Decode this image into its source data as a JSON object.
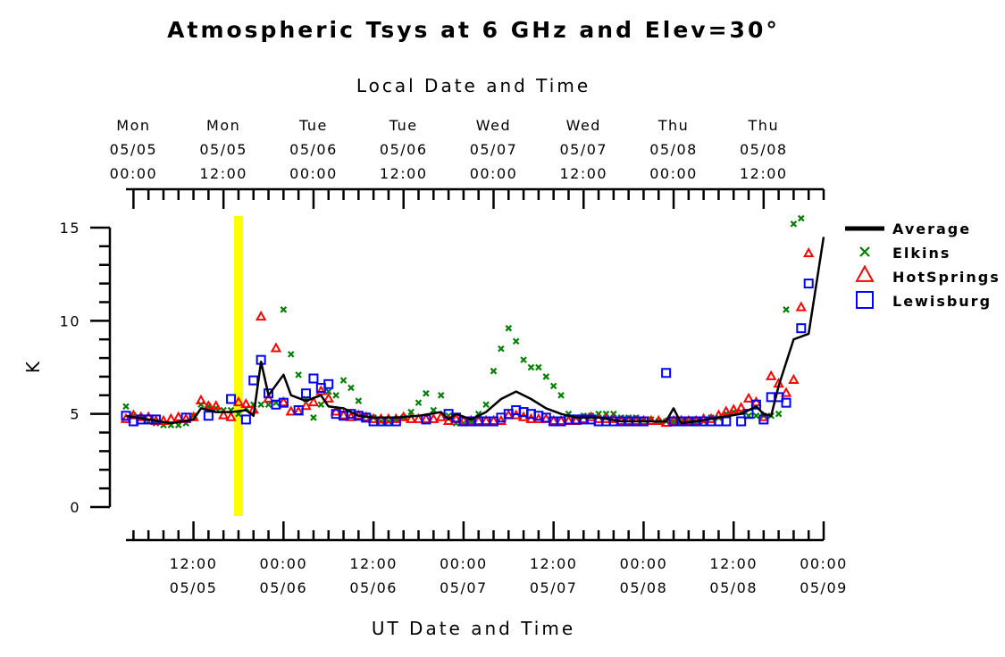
{
  "chart_data": {
    "type": "scatter",
    "title": "Atmospheric Tsys at 6 GHz and Elev=30°",
    "top_axis_label": "Local Date and Time",
    "xlabel": "UT Date and Time",
    "ylabel": "K",
    "ylim": [
      0,
      15
    ],
    "y_ticks": [
      0,
      5,
      10,
      15
    ],
    "xlim": [
      0,
      93
    ],
    "bottom_ticks": [
      {
        "x": 9,
        "time": "12:00",
        "date": "05/05"
      },
      {
        "x": 21,
        "time": "00:00",
        "date": "05/06"
      },
      {
        "x": 33,
        "time": "12:00",
        "date": "05/06"
      },
      {
        "x": 45,
        "time": "00:00",
        "date": "05/07"
      },
      {
        "x": 57,
        "time": "12:00",
        "date": "05/07"
      },
      {
        "x": 69,
        "time": "00:00",
        "date": "05/08"
      },
      {
        "x": 81,
        "time": "12:00",
        "date": "05/08"
      },
      {
        "x": 93,
        "time": "00:00",
        "date": "05/09"
      }
    ],
    "top_ticks": [
      {
        "x": 1,
        "day": "Mon",
        "date": "05/05",
        "time": "00:00"
      },
      {
        "x": 13,
        "day": "Mon",
        "date": "05/05",
        "time": "12:00"
      },
      {
        "x": 25,
        "day": "Tue",
        "date": "05/06",
        "time": "00:00"
      },
      {
        "x": 37,
        "day": "Tue",
        "date": "05/06",
        "time": "12:00"
      },
      {
        "x": 49,
        "day": "Wed",
        "date": "05/07",
        "time": "00:00"
      },
      {
        "x": 61,
        "day": "Wed",
        "date": "05/07",
        "time": "12:00"
      },
      {
        "x": 73,
        "day": "Thu",
        "date": "05/08",
        "time": "00:00"
      },
      {
        "x": 85,
        "day": "Thu",
        "date": "05/08",
        "time": "12:00"
      }
    ],
    "current_time_marker": {
      "x": 15,
      "color": "#ffff00"
    },
    "legend_position": "right",
    "series": [
      {
        "name": "Average",
        "marker": "line",
        "color": "#000000",
        "points": [
          [
            0,
            4.9
          ],
          [
            3,
            4.7
          ],
          [
            6,
            4.5
          ],
          [
            9,
            4.7
          ],
          [
            10,
            5.3
          ],
          [
            12,
            5.1
          ],
          [
            14,
            5.1
          ],
          [
            16,
            5.2
          ],
          [
            17,
            4.9
          ],
          [
            18,
            7.8
          ],
          [
            19,
            6.0
          ],
          [
            21,
            7.1
          ],
          [
            22,
            6.0
          ],
          [
            24,
            5.7
          ],
          [
            26,
            6.0
          ],
          [
            27,
            5.4
          ],
          [
            29,
            5.3
          ],
          [
            31,
            4.9
          ],
          [
            33,
            4.8
          ],
          [
            36,
            4.8
          ],
          [
            39,
            4.9
          ],
          [
            42,
            5.1
          ],
          [
            43,
            4.7
          ],
          [
            44,
            5.0
          ],
          [
            46,
            4.7
          ],
          [
            48,
            5.1
          ],
          [
            50,
            5.8
          ],
          [
            52,
            6.2
          ],
          [
            54,
            5.8
          ],
          [
            56,
            5.3
          ],
          [
            58,
            5.0
          ],
          [
            60,
            4.8
          ],
          [
            63,
            4.8
          ],
          [
            66,
            4.6
          ],
          [
            69,
            4.6
          ],
          [
            72,
            4.6
          ],
          [
            73,
            5.3
          ],
          [
            74,
            4.5
          ],
          [
            76,
            4.6
          ],
          [
            79,
            4.8
          ],
          [
            82,
            5.0
          ],
          [
            84,
            5.4
          ],
          [
            85,
            5.0
          ],
          [
            86,
            4.9
          ],
          [
            87,
            6.5
          ],
          [
            89,
            9.0
          ],
          [
            91,
            9.3
          ],
          [
            93,
            14.5
          ]
        ]
      },
      {
        "name": "Elkins",
        "marker": "x",
        "color": "#008000",
        "points": [
          [
            0,
            5.4
          ],
          [
            1,
            4.9
          ],
          [
            2,
            4.8
          ],
          [
            3,
            4.6
          ],
          [
            4,
            4.5
          ],
          [
            5,
            4.4
          ],
          [
            6,
            4.4
          ],
          [
            7,
            4.4
          ],
          [
            8,
            4.5
          ],
          [
            9,
            4.9
          ],
          [
            10,
            5.5
          ],
          [
            11,
            5.4
          ],
          [
            12,
            5.3
          ],
          [
            13,
            5.2
          ],
          [
            14,
            5.2
          ],
          [
            15,
            5.0
          ],
          [
            16,
            5.3
          ],
          [
            17,
            5.5
          ],
          [
            18,
            5.5
          ],
          [
            19,
            5.5
          ],
          [
            20,
            5.6
          ],
          [
            21,
            10.6
          ],
          [
            22,
            8.2
          ],
          [
            23,
            7.1
          ],
          [
            24,
            5.8
          ],
          [
            25,
            4.8
          ],
          [
            26,
            5.5
          ],
          [
            27,
            6.2
          ],
          [
            28,
            6.0
          ],
          [
            29,
            6.8
          ],
          [
            30,
            6.4
          ],
          [
            31,
            5.7
          ],
          [
            32,
            4.9
          ],
          [
            33,
            4.8
          ],
          [
            34,
            4.6
          ],
          [
            35,
            4.6
          ],
          [
            36,
            4.7
          ],
          [
            37,
            4.8
          ],
          [
            38,
            5.1
          ],
          [
            39,
            5.6
          ],
          [
            40,
            6.1
          ],
          [
            41,
            5.2
          ],
          [
            42,
            6.0
          ],
          [
            43,
            4.9
          ],
          [
            44,
            4.5
          ],
          [
            45,
            4.5
          ],
          [
            46,
            4.6
          ],
          [
            47,
            5.0
          ],
          [
            48,
            5.5
          ],
          [
            49,
            7.3
          ],
          [
            50,
            8.5
          ],
          [
            51,
            9.6
          ],
          [
            52,
            8.9
          ],
          [
            53,
            7.9
          ],
          [
            54,
            7.5
          ],
          [
            55,
            7.5
          ],
          [
            56,
            7.0
          ],
          [
            57,
            6.5
          ],
          [
            58,
            6.0
          ],
          [
            59,
            5.0
          ],
          [
            60,
            4.8
          ],
          [
            61,
            4.9
          ],
          [
            62,
            4.9
          ],
          [
            63,
            5.0
          ],
          [
            64,
            5.0
          ],
          [
            65,
            5.0
          ],
          [
            66,
            4.8
          ],
          [
            67,
            4.8
          ],
          [
            68,
            4.8
          ],
          [
            69,
            4.7
          ],
          [
            70,
            4.7
          ],
          [
            71,
            4.6
          ],
          [
            72,
            4.6
          ],
          [
            73,
            4.6
          ],
          [
            74,
            4.6
          ],
          [
            75,
            4.6
          ],
          [
            76,
            4.6
          ],
          [
            77,
            4.6
          ],
          [
            78,
            4.8
          ],
          [
            79,
            4.8
          ],
          [
            80,
            5.0
          ],
          [
            81,
            5.1
          ],
          [
            82,
            5.1
          ],
          [
            83,
            4.9
          ],
          [
            84,
            4.9
          ],
          [
            85,
            4.9
          ],
          [
            86,
            4.9
          ],
          [
            87,
            5.0
          ],
          [
            88,
            10.6
          ],
          [
            89,
            15.2
          ],
          [
            90,
            15.5
          ]
        ]
      },
      {
        "name": "HotSprings",
        "marker": "triangle",
        "color": "#ff0000",
        "points": [
          [
            0,
            4.7
          ],
          [
            1,
            4.9
          ],
          [
            2,
            4.8
          ],
          [
            3,
            4.8
          ],
          [
            4,
            4.6
          ],
          [
            5,
            4.6
          ],
          [
            6,
            4.7
          ],
          [
            7,
            4.8
          ],
          [
            8,
            4.7
          ],
          [
            9,
            4.8
          ],
          [
            10,
            5.7
          ],
          [
            11,
            5.4
          ],
          [
            12,
            5.4
          ],
          [
            13,
            4.9
          ],
          [
            14,
            4.8
          ],
          [
            15,
            5.6
          ],
          [
            16,
            5.5
          ],
          [
            17,
            5.2
          ],
          [
            18,
            10.2
          ],
          [
            19,
            5.8
          ],
          [
            20,
            8.5
          ],
          [
            21,
            5.6
          ],
          [
            22,
            5.1
          ],
          [
            23,
            5.1
          ],
          [
            24,
            5.4
          ],
          [
            25,
            5.6
          ],
          [
            26,
            6.2
          ],
          [
            27,
            5.8
          ],
          [
            28,
            5.1
          ],
          [
            29,
            4.9
          ],
          [
            30,
            4.8
          ],
          [
            31,
            4.9
          ],
          [
            32,
            4.8
          ],
          [
            33,
            4.7
          ],
          [
            34,
            4.7
          ],
          [
            35,
            4.7
          ],
          [
            36,
            4.7
          ],
          [
            37,
            4.8
          ],
          [
            38,
            4.7
          ],
          [
            39,
            4.7
          ],
          [
            40,
            4.7
          ],
          [
            41,
            4.7
          ],
          [
            42,
            4.8
          ],
          [
            43,
            4.6
          ],
          [
            44,
            4.7
          ],
          [
            45,
            4.6
          ],
          [
            46,
            4.6
          ],
          [
            47,
            4.6
          ],
          [
            48,
            4.6
          ],
          [
            49,
            4.6
          ],
          [
            50,
            4.6
          ],
          [
            51,
            4.9
          ],
          [
            52,
            4.9
          ],
          [
            53,
            4.8
          ],
          [
            54,
            4.7
          ],
          [
            55,
            4.7
          ],
          [
            56,
            4.7
          ],
          [
            57,
            4.6
          ],
          [
            58,
            4.6
          ],
          [
            59,
            4.6
          ],
          [
            60,
            4.6
          ],
          [
            61,
            4.7
          ],
          [
            62,
            4.8
          ],
          [
            63,
            4.7
          ],
          [
            64,
            4.7
          ],
          [
            65,
            4.7
          ],
          [
            66,
            4.6
          ],
          [
            67,
            4.6
          ],
          [
            68,
            4.6
          ],
          [
            69,
            4.6
          ],
          [
            70,
            4.6
          ],
          [
            71,
            4.6
          ],
          [
            72,
            4.5
          ],
          [
            73,
            4.6
          ],
          [
            74,
            4.6
          ],
          [
            75,
            4.6
          ],
          [
            76,
            4.6
          ],
          [
            77,
            4.7
          ],
          [
            78,
            4.7
          ],
          [
            79,
            4.9
          ],
          [
            80,
            5.1
          ],
          [
            81,
            5.2
          ],
          [
            82,
            5.3
          ],
          [
            83,
            5.8
          ],
          [
            84,
            5.6
          ],
          [
            85,
            4.8
          ],
          [
            86,
            7.0
          ],
          [
            87,
            6.6
          ],
          [
            88,
            6.1
          ],
          [
            89,
            6.8
          ],
          [
            90,
            10.7
          ],
          [
            91,
            13.6
          ]
        ]
      },
      {
        "name": "Lewisburg",
        "marker": "square",
        "color": "#0000ff",
        "points": [
          [
            0,
            4.9
          ],
          [
            1,
            4.6
          ],
          [
            2,
            4.7
          ],
          [
            3,
            4.7
          ],
          [
            4,
            4.7
          ],
          [
            8,
            4.8
          ],
          [
            11,
            4.9
          ],
          [
            14,
            5.8
          ],
          [
            16,
            4.7
          ],
          [
            17,
            6.8
          ],
          [
            18,
            7.9
          ],
          [
            19,
            6.1
          ],
          [
            20,
            5.5
          ],
          [
            21,
            5.6
          ],
          [
            23,
            5.2
          ],
          [
            24,
            6.1
          ],
          [
            25,
            6.9
          ],
          [
            26,
            6.4
          ],
          [
            27,
            6.6
          ],
          [
            28,
            5.0
          ],
          [
            29,
            4.9
          ],
          [
            30,
            5.0
          ],
          [
            31,
            4.9
          ],
          [
            32,
            4.8
          ],
          [
            33,
            4.6
          ],
          [
            34,
            4.6
          ],
          [
            35,
            4.6
          ],
          [
            36,
            4.6
          ],
          [
            40,
            4.7
          ],
          [
            43,
            5.0
          ],
          [
            44,
            4.8
          ],
          [
            45,
            4.6
          ],
          [
            46,
            4.6
          ],
          [
            47,
            4.6
          ],
          [
            48,
            4.6
          ],
          [
            49,
            4.6
          ],
          [
            50,
            4.8
          ],
          [
            51,
            5.0
          ],
          [
            52,
            5.2
          ],
          [
            53,
            5.1
          ],
          [
            54,
            5.0
          ],
          [
            55,
            4.9
          ],
          [
            56,
            4.8
          ],
          [
            57,
            4.6
          ],
          [
            58,
            4.6
          ],
          [
            59,
            4.7
          ],
          [
            60,
            4.7
          ],
          [
            61,
            4.7
          ],
          [
            62,
            4.7
          ],
          [
            63,
            4.6
          ],
          [
            64,
            4.6
          ],
          [
            65,
            4.6
          ],
          [
            66,
            4.6
          ],
          [
            67,
            4.6
          ],
          [
            68,
            4.6
          ],
          [
            69,
            4.6
          ],
          [
            72,
            7.2
          ],
          [
            73,
            4.6
          ],
          [
            74,
            4.6
          ],
          [
            75,
            4.6
          ],
          [
            76,
            4.6
          ],
          [
            77,
            4.6
          ],
          [
            78,
            4.6
          ],
          [
            79,
            4.6
          ],
          [
            80,
            4.6
          ],
          [
            82,
            4.6
          ],
          [
            83,
            5.0
          ],
          [
            84,
            5.5
          ],
          [
            85,
            4.7
          ],
          [
            86,
            5.9
          ],
          [
            87,
            5.9
          ],
          [
            88,
            5.6
          ],
          [
            90,
            9.6
          ],
          [
            91,
            12.0
          ]
        ]
      }
    ]
  }
}
